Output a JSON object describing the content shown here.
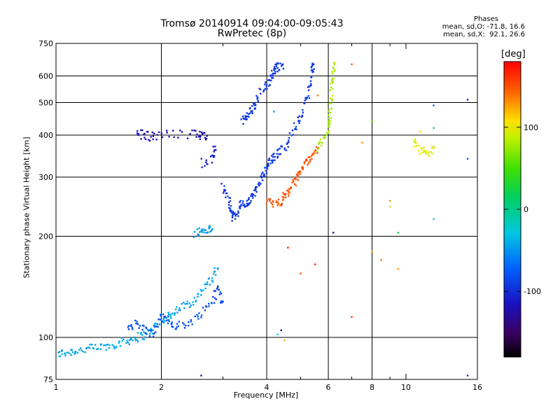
{
  "title_line1": "Tromsø 20140914 09:04:00-09:05:43",
  "title_line2": "RwPretec (8p)",
  "stats": {
    "heading": "Phases",
    "o_mode": "mean, sd,O: -71.8, 16.6",
    "x_mode": "mean, sd,X:  92.1, 26.6"
  },
  "colorbar": {
    "title": "[deg]",
    "ticks": [
      100,
      0,
      -100
    ],
    "range": [
      -180,
      180
    ]
  },
  "chart_data": {
    "type": "scatter",
    "xlabel": "Frequency [MHz]",
    "ylabel": "Stationary phase Virtual Height [km]",
    "x_scale": "log",
    "y_scale": "log",
    "xlim": [
      1,
      16
    ],
    "ylim": [
      75,
      750
    ],
    "x_ticks": [
      1,
      2,
      4,
      6,
      8,
      10,
      16
    ],
    "x_tick_labels": [
      "1",
      "2",
      "4",
      "6",
      "8",
      "10",
      "16"
    ],
    "x_major_gridlines": [
      2,
      4,
      6,
      8
    ],
    "x_minor_ticks": [
      3,
      5,
      7,
      9
    ],
    "y_ticks": [
      75,
      100,
      200,
      300,
      400,
      500,
      600,
      750
    ],
    "y_tick_labels": [
      "75",
      "100",
      "200",
      "300",
      "400",
      "500",
      "600",
      "750"
    ],
    "y_gridlines": [
      100,
      200,
      300,
      400,
      500,
      600
    ],
    "grid": true,
    "traces": [
      {
        "phase": -45,
        "points": [
          [
            1.0,
            89
          ],
          [
            1.05,
            90
          ],
          [
            1.12,
            91
          ],
          [
            1.2,
            92
          ],
          [
            1.3,
            93
          ],
          [
            1.4,
            94
          ],
          [
            1.5,
            96
          ],
          [
            1.6,
            98
          ],
          [
            1.7,
            100
          ],
          [
            1.8,
            102
          ],
          [
            1.9,
            106
          ],
          [
            2.0,
            112
          ],
          [
            2.1,
            116
          ],
          [
            2.2,
            120
          ],
          [
            2.35,
            125
          ],
          [
            2.5,
            130
          ],
          [
            2.65,
            140
          ],
          [
            2.8,
            150
          ],
          [
            2.9,
            160
          ]
        ]
      },
      {
        "phase": -85,
        "points": [
          [
            1.6,
            108
          ],
          [
            1.7,
            110
          ],
          [
            1.8,
            105
          ],
          [
            1.9,
            102
          ],
          [
            2.0,
            115
          ],
          [
            2.1,
            112
          ],
          [
            2.2,
            108
          ],
          [
            2.4,
            110
          ],
          [
            2.6,
            118
          ],
          [
            2.8,
            128
          ],
          [
            2.9,
            140
          ],
          [
            3.0,
            128
          ]
        ]
      },
      {
        "phase": -50,
        "points": [
          [
            2.5,
            205
          ],
          [
            2.6,
            207
          ],
          [
            2.7,
            209
          ],
          [
            2.8,
            210
          ]
        ]
      },
      {
        "phase": -95,
        "points": [
          [
            3.0,
            282
          ],
          [
            3.1,
            260
          ],
          [
            3.15,
            240
          ],
          [
            3.2,
            228
          ],
          [
            3.3,
            235
          ],
          [
            3.4,
            250
          ],
          [
            3.5,
            248
          ],
          [
            3.6,
            258
          ],
          [
            3.7,
            270
          ],
          [
            3.8,
            285
          ],
          [
            3.9,
            300
          ],
          [
            4.0,
            320
          ],
          [
            4.1,
            340
          ],
          [
            4.2,
            345
          ],
          [
            4.4,
            360
          ],
          [
            4.6,
            380
          ],
          [
            4.8,
            420
          ],
          [
            5.0,
            450
          ],
          [
            5.2,
            500
          ],
          [
            5.3,
            560
          ],
          [
            5.4,
            620
          ],
          [
            5.45,
            650
          ]
        ]
      },
      {
        "phase": -95,
        "points": [
          [
            3.4,
            440
          ],
          [
            3.5,
            450
          ],
          [
            3.6,
            470
          ],
          [
            3.7,
            490
          ],
          [
            3.8,
            530
          ],
          [
            4.0,
            565
          ],
          [
            4.1,
            590
          ],
          [
            4.2,
            620
          ],
          [
            4.3,
            640
          ],
          [
            4.45,
            650
          ]
        ]
      },
      {
        "phase": 150,
        "points": [
          [
            4.0,
            252
          ],
          [
            4.2,
            250
          ],
          [
            4.4,
            255
          ],
          [
            4.55,
            265
          ],
          [
            4.7,
            280
          ],
          [
            4.85,
            295
          ],
          [
            5.0,
            315
          ],
          [
            5.2,
            335
          ],
          [
            5.4,
            350
          ],
          [
            5.6,
            365
          ]
        ]
      },
      {
        "phase": 80,
        "points": [
          [
            5.6,
            365
          ],
          [
            5.8,
            385
          ],
          [
            6.0,
            410
          ],
          [
            6.05,
            450
          ],
          [
            6.1,
            500
          ],
          [
            6.15,
            560
          ],
          [
            6.2,
            620
          ],
          [
            6.25,
            650
          ]
        ]
      },
      {
        "phase": -120,
        "points": [
          [
            1.7,
            405
          ],
          [
            1.8,
            400
          ],
          [
            1.9,
            395
          ],
          [
            2.1,
            405
          ],
          [
            2.5,
            402
          ],
          [
            2.6,
            400
          ],
          [
            2.7,
            398
          ]
        ]
      },
      {
        "phase": -110,
        "points": [
          [
            2.6,
            330
          ],
          [
            2.8,
            340
          ],
          [
            2.85,
            370
          ]
        ]
      },
      {
        "phase": 95,
        "points": [
          [
            10.5,
            380
          ],
          [
            11,
            360
          ],
          [
            11.5,
            350
          ],
          [
            12,
            370
          ]
        ]
      }
    ],
    "scattered_points": [
      [
        7,
        650,
        150
      ],
      [
        8,
        440,
        60
      ],
      [
        7.5,
        380,
        130
      ],
      [
        12,
        490,
        -70
      ],
      [
        15,
        510,
        -100
      ],
      [
        15,
        340,
        -80
      ],
      [
        12,
        420,
        -10
      ],
      [
        11,
        410,
        110
      ],
      [
        12,
        225,
        -30
      ],
      [
        9.5,
        205,
        20
      ],
      [
        9,
        245,
        90
      ],
      [
        9,
        255,
        130
      ],
      [
        8.5,
        170,
        140
      ],
      [
        9.5,
        160,
        130
      ],
      [
        6.2,
        205,
        -140
      ],
      [
        4.6,
        185,
        170
      ],
      [
        5,
        155,
        150
      ],
      [
        5.5,
        165,
        170
      ],
      [
        7,
        115,
        160
      ],
      [
        4.3,
        102,
        -30
      ],
      [
        4.5,
        98,
        120
      ],
      [
        4.4,
        105,
        -140
      ],
      [
        2.6,
        77,
        -120
      ],
      [
        15,
        77,
        -100
      ],
      [
        4.2,
        470,
        -50
      ],
      [
        5.6,
        525,
        140
      ],
      [
        8,
        180,
        120
      ]
    ]
  }
}
